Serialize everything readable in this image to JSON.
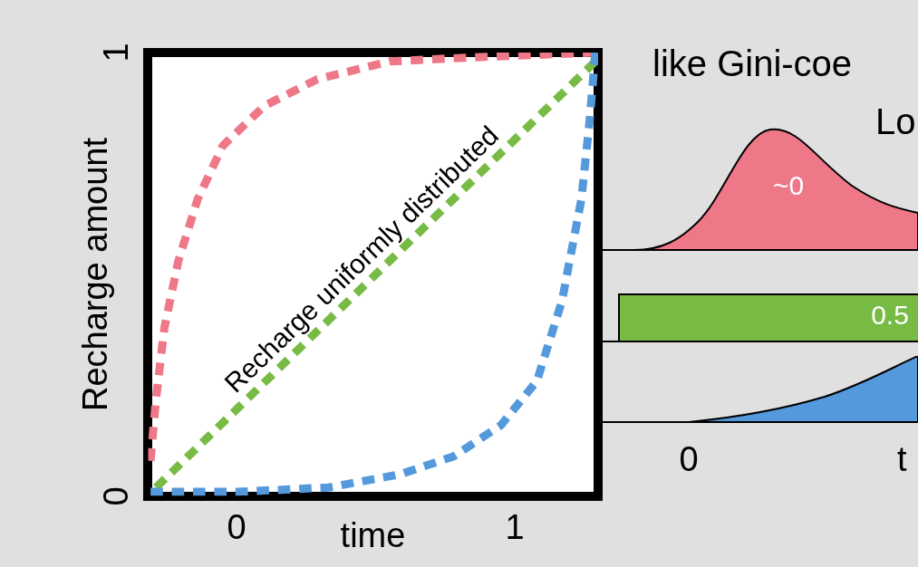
{
  "chart_data": [
    {
      "type": "line",
      "xlabel": "time",
      "ylabel": "Recharge amount",
      "xlim": [
        -0.32,
        1.3
      ],
      "xticks": [
        0,
        1
      ],
      "ylim": [
        0,
        1
      ],
      "yticks": [
        0,
        1
      ],
      "grid": false,
      "legend": false,
      "marker": "none",
      "line_style": "dashed",
      "annotations": [
        "Recharge uniformly distributed"
      ],
      "series": [
        {
          "color": "#ee7788",
          "x": [
            -0.31,
            -0.29,
            -0.26,
            -0.21,
            -0.14,
            -0.05,
            0.1,
            0.29,
            0.55,
            0.88,
            1.29
          ],
          "values": [
            0.08,
            0.22,
            0.38,
            0.53,
            0.67,
            0.79,
            0.88,
            0.94,
            0.98,
            0.99,
            1.0
          ]
        },
        {
          "color": "#77bb44",
          "x": [
            -0.29,
            0.5,
            1.29
          ],
          "values": [
            0.02,
            0.5,
            0.98
          ]
        },
        {
          "color": "#5599dd",
          "x": [
            -0.31,
            0.0,
            0.33,
            0.59,
            0.78,
            0.95,
            1.08,
            1.17,
            1.24,
            1.27,
            1.29
          ],
          "values": [
            0.01,
            0.01,
            0.02,
            0.05,
            0.09,
            0.16,
            0.26,
            0.44,
            0.67,
            0.85,
            1.0
          ]
        }
      ]
    },
    {
      "type": "other",
      "title": "like Gini-coe",
      "subtitle": "Lo",
      "xlabel": "t",
      "annotations": [
        "~0",
        "0.5",
        "0"
      ]
    }
  ]
}
